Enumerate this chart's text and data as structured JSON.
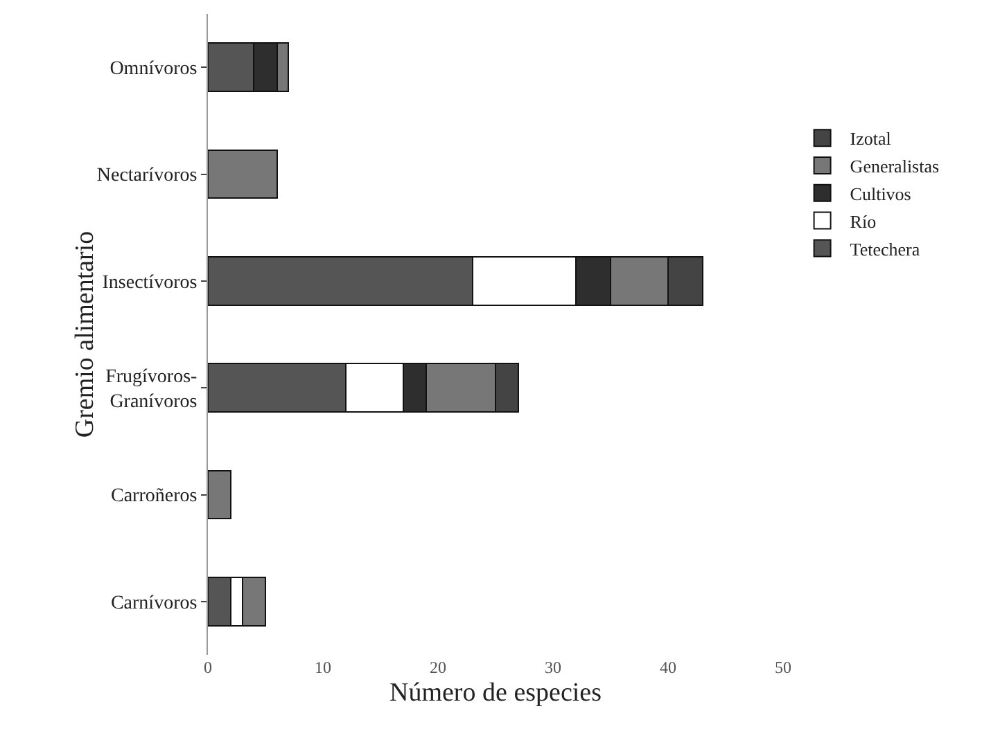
{
  "chart_data": {
    "type": "bar",
    "orientation": "horizontal",
    "stacked": true,
    "xlabel": "Número de especies",
    "ylabel": "Gremio alimentario",
    "categories": [
      "Omnívoros",
      "Nectarívoros",
      "Insectívoros",
      "Frugívoros-Granívoros",
      "Carroñeros",
      "Carnívoros"
    ],
    "series": [
      {
        "name": "Tetechera",
        "color": "#555555",
        "values": [
          4,
          0,
          23,
          12,
          0,
          2
        ]
      },
      {
        "name": "Río",
        "color": "#ffffff",
        "values": [
          0,
          0,
          9,
          5,
          0,
          1
        ]
      },
      {
        "name": "Cultivos",
        "color": "#2e2e2e",
        "values": [
          2,
          0,
          3,
          2,
          0,
          0
        ]
      },
      {
        "name": "Generalistas",
        "color": "#777777",
        "values": [
          1,
          6,
          5,
          6,
          2,
          2
        ]
      },
      {
        "name": "Izotal",
        "color": "#444444",
        "values": [
          0,
          0,
          3,
          2,
          0,
          0
        ]
      }
    ],
    "xlim": [
      0,
      50
    ],
    "xticks": [
      0,
      10,
      20,
      30,
      40,
      50
    ],
    "grid": false,
    "legend": "right"
  }
}
